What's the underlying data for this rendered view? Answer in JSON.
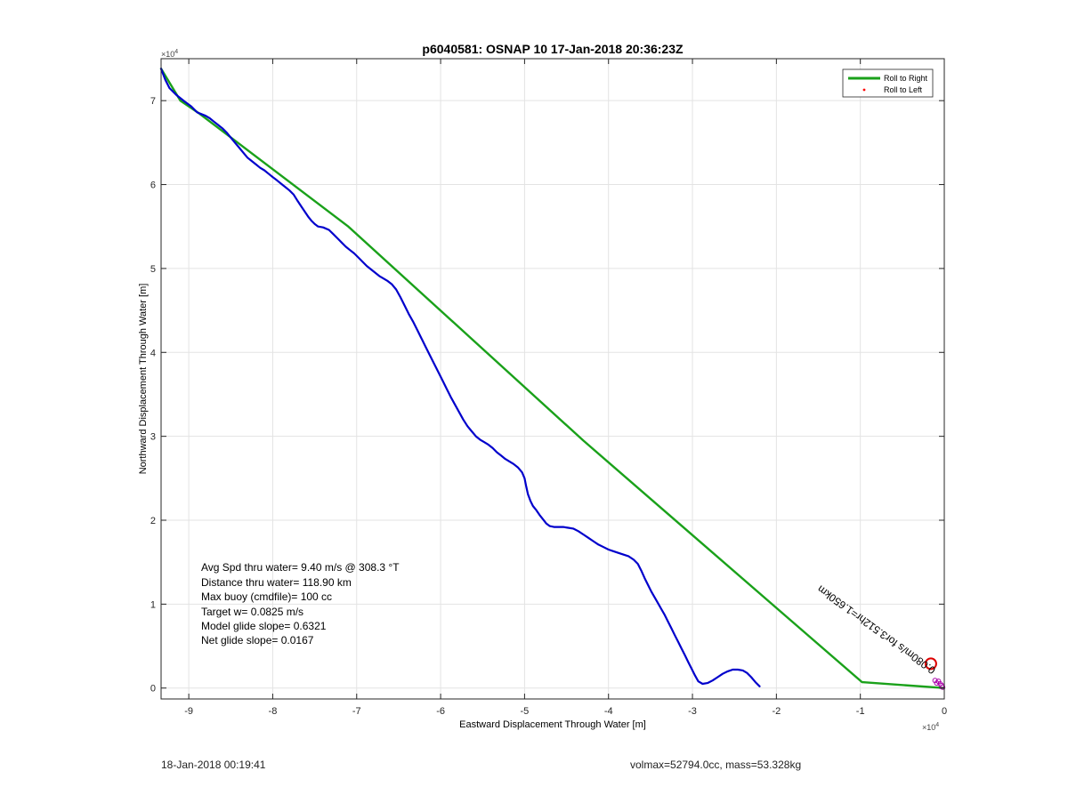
{
  "chart_data": {
    "type": "line",
    "title": "p6040581: OSNAP 10 17-Jan-2018 20:36:23Z",
    "xlabel": "Eastward Displacement Through Water [m]",
    "ylabel": "Northward Displacement Through Water [m]",
    "x_exponent": "×10",
    "x_exponent_power": "4",
    "y_exponent": "×10",
    "y_exponent_power": "4",
    "xlim": [
      -93300,
      0
    ],
    "ylim": [
      -1300,
      75000
    ],
    "xticks": [
      -90000,
      -80000,
      -70000,
      -60000,
      -50000,
      -40000,
      -30000,
      -20000,
      -10000,
      0
    ],
    "xtick_labels": [
      "-9",
      "-8",
      "-7",
      "-6",
      "-5",
      "-4",
      "-3",
      "-2",
      "-1",
      "0"
    ],
    "yticks": [
      0,
      10000,
      20000,
      30000,
      40000,
      50000,
      60000,
      70000
    ],
    "ytick_labels": [
      "0",
      "1",
      "2",
      "3",
      "4",
      "5",
      "6",
      "7"
    ],
    "grid": true,
    "legend_position": "top-right",
    "series": [
      {
        "name": "Roll to Right",
        "color": "#1aa11a",
        "points": [
          [
            -93300,
            73800
          ],
          [
            -91000,
            70000
          ],
          [
            -88800,
            68500
          ],
          [
            -71000,
            55000
          ],
          [
            -43000,
            29500
          ],
          [
            -9800,
            700
          ],
          [
            0,
            0
          ]
        ]
      },
      {
        "name": "Roll to Left",
        "color": "#ff0000",
        "marker": "dot",
        "points": []
      },
      {
        "name": "",
        "color": "#0000cc",
        "points": [
          [
            -93300,
            73800
          ],
          [
            -92800,
            72500
          ],
          [
            -92300,
            71500
          ],
          [
            -91500,
            70700
          ],
          [
            -90500,
            69900
          ],
          [
            -89700,
            69300
          ],
          [
            -89000,
            68600
          ],
          [
            -88500,
            68400
          ],
          [
            -88000,
            68200
          ],
          [
            -87500,
            67900
          ],
          [
            -87000,
            67500
          ],
          [
            -86500,
            67100
          ],
          [
            -86000,
            66700
          ],
          [
            -85500,
            66200
          ],
          [
            -85000,
            65600
          ],
          [
            -84500,
            65000
          ],
          [
            -84000,
            64400
          ],
          [
            -83500,
            63800
          ],
          [
            -83000,
            63200
          ],
          [
            -82500,
            62800
          ],
          [
            -82000,
            62400
          ],
          [
            -81500,
            62000
          ],
          [
            -81000,
            61700
          ],
          [
            -80500,
            61300
          ],
          [
            -80000,
            60900
          ],
          [
            -79500,
            60500
          ],
          [
            -79000,
            60100
          ],
          [
            -78500,
            59700
          ],
          [
            -78000,
            59300
          ],
          [
            -77500,
            58800
          ],
          [
            -77000,
            58000
          ],
          [
            -76600,
            57400
          ],
          [
            -76200,
            56800
          ],
          [
            -75800,
            56200
          ],
          [
            -75400,
            55700
          ],
          [
            -75000,
            55300
          ],
          [
            -74600,
            55000
          ],
          [
            -74000,
            54900
          ],
          [
            -73300,
            54600
          ],
          [
            -72800,
            54100
          ],
          [
            -72300,
            53600
          ],
          [
            -71800,
            53100
          ],
          [
            -71300,
            52600
          ],
          [
            -70800,
            52200
          ],
          [
            -70300,
            51800
          ],
          [
            -69800,
            51300
          ],
          [
            -69300,
            50800
          ],
          [
            -68800,
            50300
          ],
          [
            -68300,
            49900
          ],
          [
            -67800,
            49500
          ],
          [
            -67300,
            49100
          ],
          [
            -66800,
            48800
          ],
          [
            -66300,
            48500
          ],
          [
            -65800,
            48100
          ],
          [
            -65300,
            47500
          ],
          [
            -64800,
            46600
          ],
          [
            -64300,
            45600
          ],
          [
            -63800,
            44600
          ],
          [
            -63300,
            43700
          ],
          [
            -62800,
            42700
          ],
          [
            -62300,
            41700
          ],
          [
            -61800,
            40700
          ],
          [
            -61300,
            39700
          ],
          [
            -60800,
            38700
          ],
          [
            -60300,
            37700
          ],
          [
            -59800,
            36700
          ],
          [
            -59300,
            35700
          ],
          [
            -58800,
            34700
          ],
          [
            -58300,
            33800
          ],
          [
            -57800,
            32900
          ],
          [
            -57300,
            32000
          ],
          [
            -56800,
            31200
          ],
          [
            -56300,
            30600
          ],
          [
            -55800,
            30000
          ],
          [
            -55300,
            29600
          ],
          [
            -54800,
            29300
          ],
          [
            -54300,
            29000
          ],
          [
            -53800,
            28600
          ],
          [
            -53300,
            28100
          ],
          [
            -52800,
            27700
          ],
          [
            -52300,
            27300
          ],
          [
            -51800,
            27000
          ],
          [
            -51300,
            26700
          ],
          [
            -50800,
            26300
          ],
          [
            -50300,
            25700
          ],
          [
            -50000,
            25000
          ],
          [
            -49800,
            24000
          ],
          [
            -49600,
            23100
          ],
          [
            -49300,
            22300
          ],
          [
            -49000,
            21700
          ],
          [
            -48600,
            21200
          ],
          [
            -48200,
            20600
          ],
          [
            -47800,
            20100
          ],
          [
            -47400,
            19600
          ],
          [
            -47000,
            19300
          ],
          [
            -46500,
            19200
          ],
          [
            -46000,
            19200
          ],
          [
            -45400,
            19200
          ],
          [
            -44800,
            19100
          ],
          [
            -44200,
            19000
          ],
          [
            -43600,
            18700
          ],
          [
            -43000,
            18300
          ],
          [
            -42400,
            17900
          ],
          [
            -41800,
            17500
          ],
          [
            -41200,
            17100
          ],
          [
            -40600,
            16800
          ],
          [
            -40000,
            16500
          ],
          [
            -39400,
            16300
          ],
          [
            -38800,
            16100
          ],
          [
            -38200,
            15900
          ],
          [
            -37600,
            15700
          ],
          [
            -37000,
            15300
          ],
          [
            -36500,
            14800
          ],
          [
            -36100,
            14000
          ],
          [
            -35700,
            13100
          ],
          [
            -35300,
            12300
          ],
          [
            -34900,
            11500
          ],
          [
            -34500,
            10800
          ],
          [
            -34100,
            10100
          ],
          [
            -33700,
            9400
          ],
          [
            -33300,
            8700
          ],
          [
            -32900,
            7900
          ],
          [
            -32500,
            7100
          ],
          [
            -32100,
            6300
          ],
          [
            -31700,
            5500
          ],
          [
            -31300,
            4700
          ],
          [
            -30900,
            3900
          ],
          [
            -30500,
            3100
          ],
          [
            -30100,
            2300
          ],
          [
            -29700,
            1500
          ],
          [
            -29300,
            800
          ],
          [
            -28800,
            500
          ],
          [
            -28200,
            600
          ],
          [
            -27600,
            900
          ],
          [
            -27000,
            1300
          ],
          [
            -26400,
            1700
          ],
          [
            -25800,
            2000
          ],
          [
            -25200,
            2200
          ],
          [
            -24600,
            2200
          ],
          [
            -24000,
            2100
          ],
          [
            -23500,
            1800
          ],
          [
            -23000,
            1300
          ],
          [
            -22500,
            700
          ],
          [
            -22000,
            200
          ]
        ]
      }
    ],
    "text_box": [
      "Avg Spd thru water=  9.40 m/s @ 308.3 °T",
      "Distance thru water= 118.90 km",
      "Max buoy (cmdfile)= 100 cc",
      "Target w= 0.0825 m/s",
      "Model glide slope= 0.6321",
      "Net glide slope= 0.0167"
    ],
    "rotated_annotation": "0.080m/s for3.512hr=1.650km",
    "marker_circle": {
      "x": -1600,
      "y": 2900,
      "color": "#dd0000"
    }
  },
  "footer": {
    "timestamp": "18-Jan-2018 00:19:41",
    "summary": "volmax=52794.0cc, mass=53.328kg"
  }
}
